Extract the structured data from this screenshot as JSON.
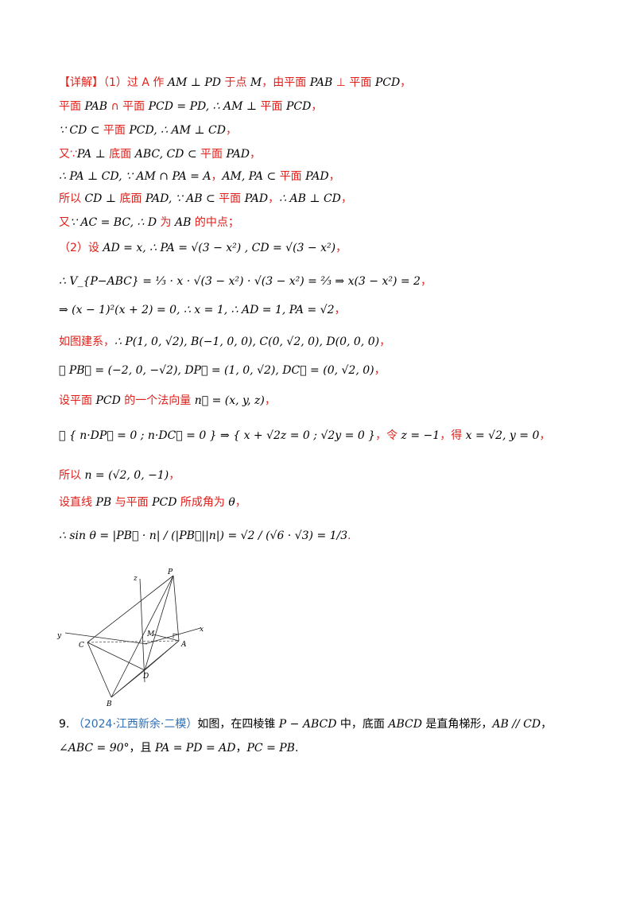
{
  "lines": [
    {
      "label": "【详解】",
      "step": "（1）",
      "t1": "过 A 作 ",
      "m1": "AM ⊥ PD",
      "t2": " 于点 ",
      "m2": "M",
      "t3": "，由平面 ",
      "m3": "PAB",
      "t4": " ⊥ 平面 ",
      "m4": "PCD",
      "t5": "，"
    },
    {
      "t1": "平面 ",
      "m1": "PAB",
      "t2": " ∩ 平面 ",
      "m2": "PCD = PD, ∴ AM ⊥",
      "t3": " 平面 ",
      "m3": "PCD",
      "t4": "，"
    },
    {
      "m1": "∵ CD ⊂",
      "t1": " 平面 ",
      "m2": "PCD, ∴ AM ⊥ CD",
      "t2": "，"
    },
    {
      "t1": "又∵",
      "m1": "PA ⊥",
      "t2": " 底面 ",
      "m2": "ABC, CD ⊂",
      "t3": " 平面 ",
      "m3": "PAD",
      "t4": "，"
    },
    {
      "m1": "∴ PA ⊥ CD, ∵ AM ∩ PA = A",
      "t1": "，",
      "m2": "AM, PA ⊂",
      "t2": " 平面 ",
      "m3": "PAD",
      "t3": "，"
    },
    {
      "t1": "所以 ",
      "m1": "CD ⊥",
      "t2": " 底面 ",
      "m2": "PAD, ∵ AB ⊂",
      "t3": " 平面 ",
      "m3": "PAD",
      "t4": "，",
      "m4": "∴ AB ⊥ CD",
      "t5": "，"
    },
    {
      "t1": "又",
      "m1": "∵ AC = BC, ∴ D",
      "t2": " 为 ",
      "m2": "AB",
      "t3": " 的中点；"
    },
    {
      "step": "（2）",
      "t1": "设 ",
      "m1": "AD = x, ∴ PA = √(3 − x²) , CD = √(3 − x²)",
      "t2": "，"
    },
    {
      "m1": "∴ V_{P−ABC} = ⅓ · x · √(3 − x²) · √(3 − x²) = ⅔ ⇒ x(3 − x²) = 2",
      "t1": "，"
    },
    {
      "m1": "⇒ (x − 1)²(x + 2) = 0, ∴ x = 1, ∴ AD = 1, PA = √2",
      "t1": "，"
    },
    {
      "t1": "如图建系，",
      "m1": "∴ P(1, 0, √2), B(−1, 0, 0), C(0, √2, 0), D(0, 0, 0)",
      "t2": "，"
    },
    {
      "m1": "∴ PB⃗ = (−2, 0, −√2), DP⃗ = (1, 0, √2), DC⃗ = (0, √2, 0)",
      "t1": "，"
    },
    {
      "t1": "设平面 ",
      "m1": "PCD",
      "t2": " 的一个法向量 ",
      "m2": "n⃗ = (x, y, z)",
      "t3": "，"
    },
    {
      "m1": "∴ { n·DP⃗ = 0 ; n·DC⃗ = 0 } ⇒ { x + √2z = 0 ; √2y = 0 }",
      "t1": "，令 ",
      "m2": "z = −1",
      "t2": "，得 ",
      "m3": "x = √2, y = 0",
      "t3": "，"
    },
    {
      "t1": "所以 ",
      "m1": "n = (√2, 0, −1)",
      "t2": "，"
    },
    {
      "t1": "设直线 ",
      "m1": "PB",
      "t2": " 与平面 ",
      "m2": "PCD",
      "t3": " 所成角为 ",
      "m3": "θ",
      "t4": "，"
    },
    {
      "m1": "∴ sin θ = |PB⃗ · n| / (|PB⃗||n|) = √2 / (√6 · √3) = 1/3",
      "t1": "."
    }
  ],
  "figure": {
    "labels": {
      "P": "P",
      "z": "z",
      "y": "y",
      "x": "x",
      "M": "M",
      "C": "C",
      "A": "A",
      "D": "D",
      "B": "B"
    }
  },
  "question9": {
    "number": "9.",
    "source": "（2024·江西新余·二模）",
    "text1": "如图，在四棱锥 ",
    "m1": "P − ABCD",
    "text2": " 中，底面 ",
    "m2": "ABCD",
    "text3": " 是直角梯形，",
    "m3": "AB // CD",
    "text4": "，",
    "m4": "∠ABC = 90°",
    "text5": "，且 ",
    "m5": "PA = PD = AD",
    "text6": "，",
    "m6": "PC = PB",
    "text7": "."
  }
}
